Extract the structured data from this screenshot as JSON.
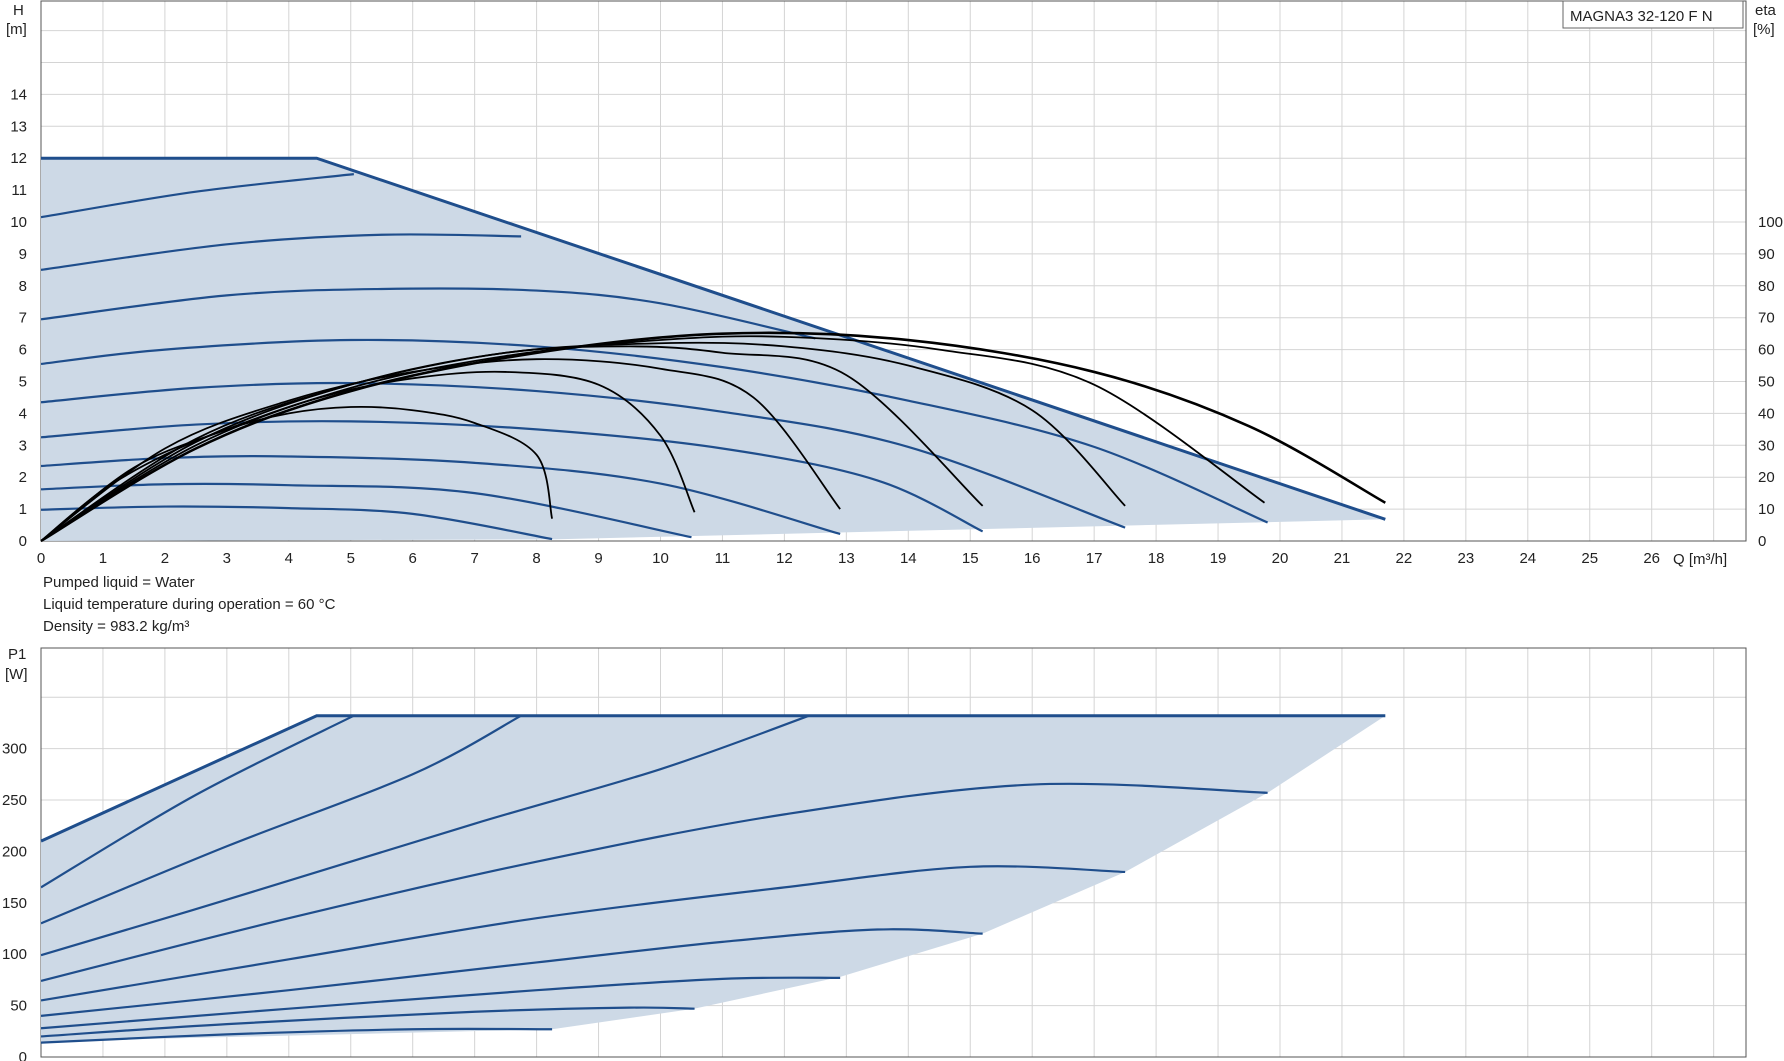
{
  "model_label": "MAGNA3 32-120 F N",
  "notes": {
    "liquid": "Pumped liquid = Water",
    "temperature": "Liquid temperature during operation = 60 °C",
    "density": "Density = 983.2 kg/m³"
  },
  "colors": {
    "curve": "#1f4e8c",
    "envelope_fill": "#cdd9e6",
    "efficiency": "#000000",
    "grid": "#d4d4d4",
    "frame": "#555555"
  },
  "chart_data": [
    {
      "type": "line",
      "name": "head",
      "x_unit_label": "Q [m³/h]",
      "y_label_line1": "H",
      "y_label_line2": "[m]",
      "y2_label_line1": "eta",
      "y2_label_line2": "[%]",
      "xlim": [
        0,
        27.5
      ],
      "ylim": [
        0,
        17
      ],
      "y2lim": [
        0,
        170
      ],
      "x_ticks": [
        0,
        1,
        2,
        3,
        4,
        5,
        6,
        7,
        8,
        9,
        10,
        11,
        12,
        13,
        14,
        15,
        16,
        17,
        18,
        19,
        20,
        21,
        22,
        23,
        24,
        25,
        26
      ],
      "y_ticks": [
        0,
        1,
        2,
        3,
        4,
        5,
        6,
        7,
        8,
        9,
        10,
        11,
        12,
        13,
        14
      ],
      "y2_ticks": [
        0,
        10,
        20,
        30,
        40,
        50,
        60,
        70,
        80,
        90,
        100
      ],
      "grid": true,
      "envelope": [
        [
          0,
          12
        ],
        [
          4.45,
          12
        ],
        [
          21.7,
          0.68
        ],
        [
          8.25,
          0.05
        ],
        [
          0,
          0
        ]
      ],
      "max_curve": [
        [
          0,
          12
        ],
        [
          4.45,
          12
        ],
        [
          21.7,
          0.68
        ]
      ],
      "head_curves": [
        {
          "points": [
            [
              0,
              10.15
            ],
            [
              2.5,
              10.95
            ],
            [
              5.05,
              11.5
            ]
          ]
        },
        {
          "points": [
            [
              0,
              8.5
            ],
            [
              3,
              9.3
            ],
            [
              5.5,
              9.6
            ],
            [
              7.75,
              9.55
            ]
          ]
        },
        {
          "points": [
            [
              0,
              6.95
            ],
            [
              3,
              7.7
            ],
            [
              5.5,
              7.9
            ],
            [
              8,
              7.85
            ],
            [
              10,
              7.45
            ],
            [
              12.5,
              6.35
            ]
          ]
        },
        {
          "points": [
            [
              0,
              5.55
            ],
            [
              2,
              6.0
            ],
            [
              5,
              6.3
            ],
            [
              8,
              6.1
            ],
            [
              11,
              5.45
            ],
            [
              14,
              4.4
            ],
            [
              17,
              2.95
            ],
            [
              19.8,
              0.58
            ]
          ]
        },
        {
          "points": [
            [
              0,
              4.35
            ],
            [
              2.5,
              4.8
            ],
            [
              5,
              4.95
            ],
            [
              8,
              4.7
            ],
            [
              11,
              4.05
            ],
            [
              14,
              2.95
            ],
            [
              17.5,
              0.42
            ]
          ]
        },
        {
          "points": [
            [
              0,
              3.25
            ],
            [
              2.5,
              3.65
            ],
            [
              5,
              3.75
            ],
            [
              8,
              3.5
            ],
            [
              11,
              2.9
            ],
            [
              13.5,
              1.9
            ],
            [
              15.2,
              0.3
            ]
          ]
        },
        {
          "points": [
            [
              0,
              2.35
            ],
            [
              2,
              2.6
            ],
            [
              4,
              2.65
            ],
            [
              7,
              2.45
            ],
            [
              10,
              1.8
            ],
            [
              12.9,
              0.22
            ]
          ]
        },
        {
          "points": [
            [
              0,
              1.62
            ],
            [
              2,
              1.78
            ],
            [
              4,
              1.75
            ],
            [
              7,
              1.5
            ],
            [
              10.5,
              0.12
            ]
          ]
        },
        {
          "points": [
            [
              0,
              0.98
            ],
            [
              2,
              1.08
            ],
            [
              4,
              1.03
            ],
            [
              6,
              0.85
            ],
            [
              8.25,
              0.06
            ]
          ]
        }
      ],
      "efficiency_curves": [
        {
          "points": [
            [
              0,
              0
            ],
            [
              1,
              16
            ],
            [
              2,
              27
            ],
            [
              3,
              35
            ],
            [
              4,
              40
            ],
            [
              5,
              42
            ],
            [
              6,
              41
            ],
            [
              7,
              37
            ],
            [
              8,
              27
            ],
            [
              8.25,
              7
            ]
          ]
        },
        {
          "points": [
            [
              0,
              0
            ],
            [
              1.5,
              23
            ],
            [
              3,
              35
            ],
            [
              4.5,
              45
            ],
            [
              6,
              51
            ],
            [
              7.5,
              53
            ],
            [
              9,
              49
            ],
            [
              10,
              33
            ],
            [
              10.55,
              9
            ]
          ]
        },
        {
          "points": [
            [
              0,
              0
            ],
            [
              2,
              29
            ],
            [
              4,
              44
            ],
            [
              6,
              53
            ],
            [
              8,
              57
            ],
            [
              10,
              54
            ],
            [
              11.5,
              45
            ],
            [
              12.9,
              10
            ]
          ]
        },
        {
          "points": [
            [
              0,
              0
            ],
            [
              2.5,
              32
            ],
            [
              5,
              49
            ],
            [
              7.5,
              59
            ],
            [
              9.5,
              61
            ],
            [
              11,
              59
            ],
            [
              13,
              52
            ],
            [
              15.2,
              11
            ]
          ]
        },
        {
          "points": [
            [
              0,
              0
            ],
            [
              2.5,
              31
            ],
            [
              5,
              49
            ],
            [
              7.5,
              59
            ],
            [
              10,
              62
            ],
            [
              12,
              61
            ],
            [
              14,
              55
            ],
            [
              16,
              41
            ],
            [
              17.5,
              11
            ]
          ]
        },
        {
          "points": [
            [
              0,
              0
            ],
            [
              2.5,
              30
            ],
            [
              5,
              48
            ],
            [
              7.5,
              58
            ],
            [
              10,
              63
            ],
            [
              12,
              64
            ],
            [
              14.5,
              60
            ],
            [
              17,
              49
            ],
            [
              19.75,
              12
            ]
          ]
        },
        {
          "points": [
            [
              0,
              0
            ],
            [
              2.5,
              29
            ],
            [
              5,
              47
            ],
            [
              8,
              59
            ],
            [
              11,
              65
            ],
            [
              14,
              63
            ],
            [
              17,
              53
            ],
            [
              19.5,
              36
            ],
            [
              21.7,
              12
            ]
          ]
        }
      ]
    },
    {
      "type": "line",
      "name": "power",
      "y_label_line1": "P1",
      "y_label_line2": "[W]",
      "xlim": [
        0,
        27.5
      ],
      "ylim": [
        0,
        400
      ],
      "y_ticks": [
        0,
        50,
        100,
        150,
        200,
        250,
        300
      ],
      "grid": true,
      "envelope": [
        [
          0,
          210
        ],
        [
          4.45,
          332
        ],
        [
          21.7,
          332
        ],
        [
          19.8,
          257
        ],
        [
          17.5,
          180
        ],
        [
          15.2,
          120
        ],
        [
          12.9,
          78
        ],
        [
          10.55,
          47
        ],
        [
          8.25,
          27
        ],
        [
          0,
          15
        ]
      ],
      "max_curve": [
        [
          0,
          210
        ],
        [
          4.45,
          332
        ],
        [
          21.7,
          332
        ]
      ],
      "power_curves": [
        {
          "points": [
            [
              0,
              165
            ],
            [
              2.5,
              255
            ],
            [
              5.05,
              332
            ]
          ]
        },
        {
          "points": [
            [
              0,
              130
            ],
            [
              3,
              205
            ],
            [
              6,
              275
            ],
            [
              7.75,
              332
            ]
          ]
        },
        {
          "points": [
            [
              0,
              99
            ],
            [
              3,
              153
            ],
            [
              7,
              227
            ],
            [
              10,
              280
            ],
            [
              12.4,
              332
            ]
          ]
        },
        {
          "points": [
            [
              0,
              74
            ],
            [
              4,
              135
            ],
            [
              8,
              190
            ],
            [
              12,
              236
            ],
            [
              16,
              265
            ],
            [
              19.8,
              257
            ]
          ]
        },
        {
          "points": [
            [
              0,
              55
            ],
            [
              4,
              95
            ],
            [
              8,
              135
            ],
            [
              12,
              165
            ],
            [
              15,
              185
            ],
            [
              17.5,
              180
            ]
          ]
        },
        {
          "points": [
            [
              0,
              40
            ],
            [
              4,
              65
            ],
            [
              8,
              92
            ],
            [
              11,
              112
            ],
            [
              13.5,
              124
            ],
            [
              15.2,
              120
            ]
          ]
        },
        {
          "points": [
            [
              0,
              28
            ],
            [
              4,
              47
            ],
            [
              8,
              65
            ],
            [
              11,
              76
            ],
            [
              12.9,
              77
            ]
          ]
        },
        {
          "points": [
            [
              0,
              20
            ],
            [
              3,
              32
            ],
            [
              7,
              44
            ],
            [
              9.5,
              48
            ],
            [
              10.55,
              47
            ]
          ]
        },
        {
          "points": [
            [
              0,
              14
            ],
            [
              3,
              22
            ],
            [
              6,
              27
            ],
            [
              8.25,
              27
            ]
          ]
        }
      ]
    }
  ]
}
